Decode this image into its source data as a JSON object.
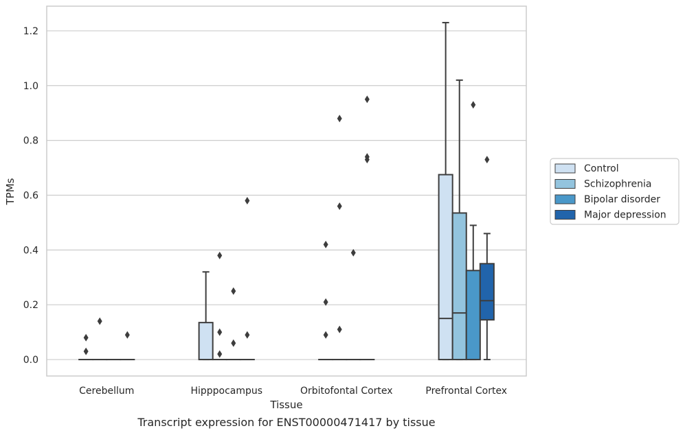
{
  "chart_data": {
    "type": "box",
    "xlabel": "Tissue",
    "ylabel": "TPMs",
    "caption": "Transcript expression for ENST00000471417 by tissue",
    "ylim": [
      -0.06,
      1.29
    ],
    "yticks": [
      0.0,
      0.2,
      0.4,
      0.6,
      0.8,
      1.0,
      1.2
    ],
    "ytick_labels": [
      "0.0",
      "0.2",
      "0.4",
      "0.6",
      "0.8",
      "1.0",
      "1.2"
    ],
    "grid": "horizontal",
    "legend_position": "right",
    "categories": [
      "Cerebellum",
      "Hipppocampus",
      "Orbitofontal Cortex",
      "Prefrontal Cortex"
    ],
    "series": [
      {
        "name": "Control",
        "color": "#cfe1f2",
        "boxes": [
          {
            "q1": 0.0,
            "median": 0.0,
            "q3": 0.0,
            "whisker_low": 0.0,
            "whisker_high": 0.0,
            "outliers": [
              0.08,
              0.03
            ]
          },
          {
            "q1": 0.0,
            "median": 0.0,
            "q3": 0.135,
            "whisker_low": 0.0,
            "whisker_high": 0.32,
            "outliers": []
          },
          {
            "q1": 0.0,
            "median": 0.0,
            "q3": 0.0,
            "whisker_low": 0.0,
            "whisker_high": 0.0,
            "outliers": [
              0.42,
              0.21,
              0.09
            ]
          },
          {
            "q1": 0.0,
            "median": 0.15,
            "q3": 0.675,
            "whisker_low": 0.0,
            "whisker_high": 1.23,
            "outliers": []
          }
        ]
      },
      {
        "name": "Schizophrenia",
        "color": "#93c4de",
        "boxes": [
          {
            "q1": 0.0,
            "median": 0.0,
            "q3": 0.0,
            "whisker_low": 0.0,
            "whisker_high": 0.0,
            "outliers": [
              0.14
            ]
          },
          {
            "q1": 0.0,
            "median": 0.0,
            "q3": 0.0,
            "whisker_low": 0.0,
            "whisker_high": 0.0,
            "outliers": [
              0.38,
              0.1,
              0.02
            ]
          },
          {
            "q1": 0.0,
            "median": 0.0,
            "q3": 0.0,
            "whisker_low": 0.0,
            "whisker_high": 0.0,
            "outliers": [
              0.88,
              0.56,
              0.11
            ]
          },
          {
            "q1": 0.0,
            "median": 0.17,
            "q3": 0.535,
            "whisker_low": 0.0,
            "whisker_high": 1.02,
            "outliers": []
          }
        ]
      },
      {
        "name": "Bipolar disorder",
        "color": "#4a98c9",
        "boxes": [
          {
            "q1": 0.0,
            "median": 0.0,
            "q3": 0.0,
            "whisker_low": 0.0,
            "whisker_high": 0.0,
            "outliers": []
          },
          {
            "q1": 0.0,
            "median": 0.0,
            "q3": 0.0,
            "whisker_low": 0.0,
            "whisker_high": 0.0,
            "outliers": [
              0.25,
              0.06
            ]
          },
          {
            "q1": 0.0,
            "median": 0.0,
            "q3": 0.0,
            "whisker_low": 0.0,
            "whisker_high": 0.0,
            "outliers": [
              0.39
            ]
          },
          {
            "q1": 0.0,
            "median": 0.0,
            "q3": 0.325,
            "whisker_low": 0.0,
            "whisker_high": 0.49,
            "outliers": [
              0.93
            ]
          }
        ]
      },
      {
        "name": "Major depression",
        "color": "#2164ab",
        "boxes": [
          {
            "q1": 0.0,
            "median": 0.0,
            "q3": 0.0,
            "whisker_low": 0.0,
            "whisker_high": 0.0,
            "outliers": [
              0.09
            ]
          },
          {
            "q1": 0.0,
            "median": 0.0,
            "q3": 0.0,
            "whisker_low": 0.0,
            "whisker_high": 0.0,
            "outliers": [
              0.58,
              0.09
            ]
          },
          {
            "q1": 0.0,
            "median": 0.0,
            "q3": 0.0,
            "whisker_low": 0.0,
            "whisker_high": 0.0,
            "outliers": [
              0.95,
              0.74,
              0.73
            ]
          },
          {
            "q1": 0.145,
            "median": 0.215,
            "q3": 0.35,
            "whisker_low": 0.0,
            "whisker_high": 0.46,
            "outliers": [
              0.73
            ]
          }
        ]
      }
    ]
  }
}
